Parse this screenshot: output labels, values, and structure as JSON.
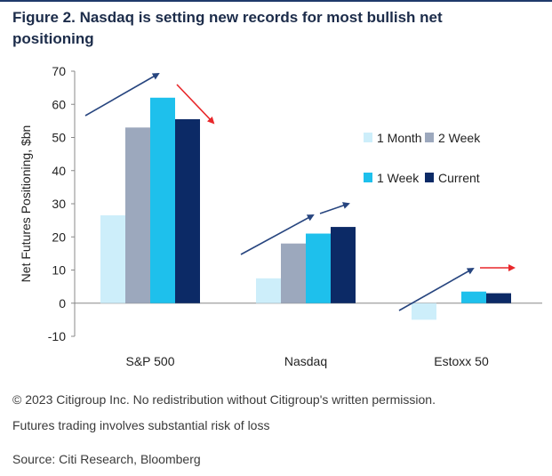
{
  "title": "Figure 2. Nasdaq is setting new records for most bullish net positioning",
  "footer": {
    "copyright": "© 2023 Citigroup Inc. No redistribution without Citigroup's written permission.",
    "risk": "Futures trading involves substantial risk of loss",
    "source": "Source: Citi Research, Bloomberg"
  },
  "colors": {
    "1 Month": "#cdeefa",
    "2 Week": "#9ca8bd",
    "1 Week": "#1ec0ec",
    "Current": "#0c2a66",
    "arrow_up": "#27457f",
    "arrow_down": "#e8272a"
  },
  "chart_data": {
    "type": "bar",
    "categories": [
      "S&P 500",
      "Nasdaq",
      "Estoxx 50"
    ],
    "series": [
      {
        "name": "1 Month",
        "values": [
          26.5,
          7.5,
          -5
        ]
      },
      {
        "name": "2 Week",
        "values": [
          53,
          18,
          0
        ]
      },
      {
        "name": "1 Week",
        "values": [
          62,
          21,
          3.5
        ]
      },
      {
        "name": "Current",
        "values": [
          55.5,
          23,
          3
        ]
      }
    ],
    "ylabel": "Net Futures Positioning, $bn",
    "xlabel": "",
    "ylim": [
      -10,
      70
    ],
    "yticks": [
      "70",
      "60",
      "50",
      "40",
      "30",
      "20",
      "10",
      "0",
      "-10"
    ],
    "legend": "inside-right",
    "grid": false,
    "annotations": "trend arrows above each group: up (navy) and down (red) over S&P 500, up and up over Nasdaq, up and flat-right (red) over Estoxx 50"
  }
}
